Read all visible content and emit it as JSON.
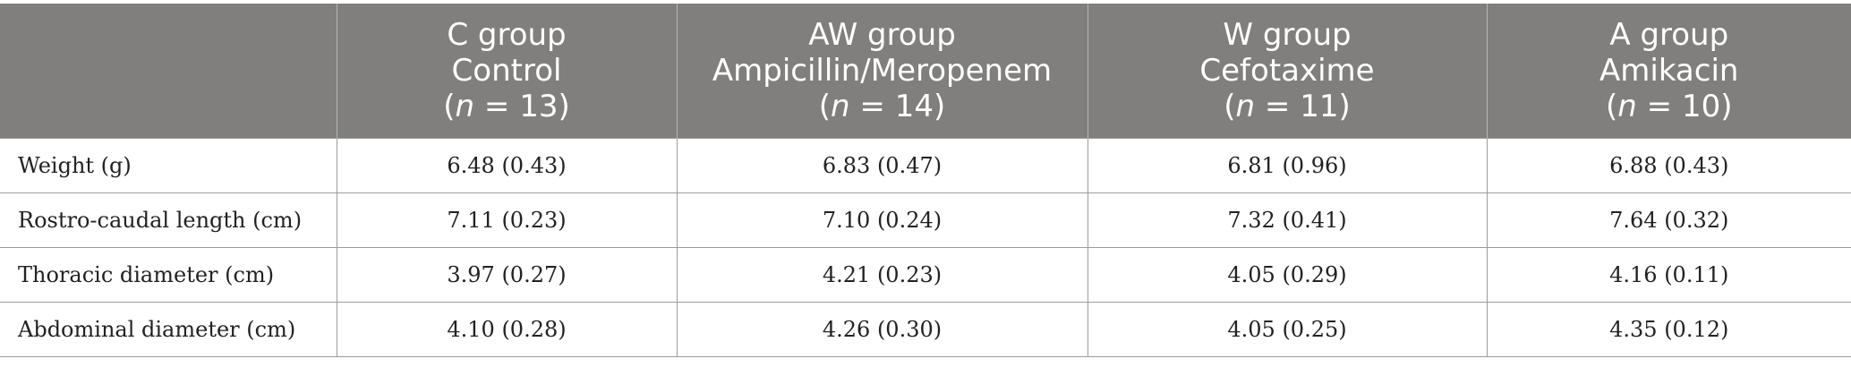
{
  "header": {
    "columns": [
      {
        "group": "",
        "treatment": "",
        "n_prefix": "",
        "n_symbol": "",
        "n_suffix": ""
      },
      {
        "group": "C group",
        "treatment": "Control",
        "n_prefix": "(",
        "n_symbol": "n",
        "n_suffix": " = 13)"
      },
      {
        "group": "AW group",
        "treatment": "Ampicillin/Meropenem",
        "n_prefix": "(",
        "n_symbol": "n",
        "n_suffix": " = 14)"
      },
      {
        "group": "W group",
        "treatment": "Cefotaxime",
        "n_prefix": "(",
        "n_symbol": "n",
        "n_suffix": " = 11)"
      },
      {
        "group": "A group",
        "treatment": "Amikacin",
        "n_prefix": "(",
        "n_symbol": "n",
        "n_suffix": " = 10)"
      }
    ]
  },
  "rows": [
    {
      "label": "Weight (g)",
      "values": [
        "6.48 (0.43)",
        "6.83 (0.47)",
        "6.81 (0.96)",
        "6.88 (0.43)"
      ]
    },
    {
      "label": "Rostro-caudal length (cm)",
      "values": [
        "7.11 (0.23)",
        "7.10 (0.24)",
        "7.32 (0.41)",
        "7.64 (0.32)"
      ]
    },
    {
      "label": "Thoracic diameter (cm)",
      "values": [
        "3.97 (0.27)",
        "4.21 (0.23)",
        "4.05 (0.29)",
        "4.16 (0.11)"
      ]
    },
    {
      "label": "Abdominal diameter (cm)",
      "values": [
        "4.10 (0.28)",
        "4.26 (0.30)",
        "4.05 (0.25)",
        "4.35 (0.12)"
      ]
    }
  ],
  "colors": {
    "header_background": "#807f7d",
    "header_text": "#ffffff",
    "rule": "#9c9c9c"
  }
}
